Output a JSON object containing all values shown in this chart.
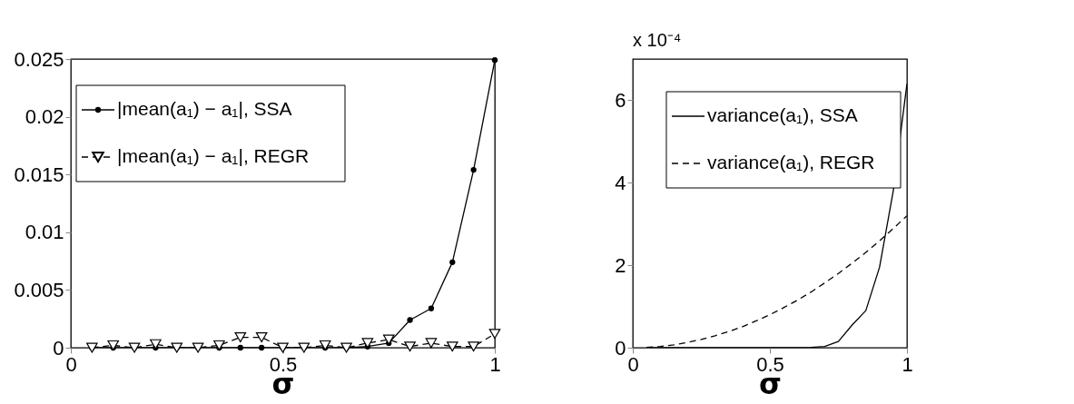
{
  "chart_data": [
    {
      "type": "line",
      "xlabel": "σ",
      "xlim": [
        0,
        1
      ],
      "xticks": [
        0,
        0.5,
        1
      ],
      "ylim": [
        0,
        0.025
      ],
      "yticks": [
        0,
        0.005,
        0.01,
        0.015,
        0.02,
        0.025
      ],
      "grid": false,
      "legend": "top left",
      "x": [
        0.05,
        0.1,
        0.15,
        0.2,
        0.25,
        0.3,
        0.35,
        0.4,
        0.45,
        0.5,
        0.55,
        0.6,
        0.65,
        0.7,
        0.75,
        0.8,
        0.85,
        0.9,
        0.95,
        1.0
      ],
      "series": [
        {
          "name": "|mean(a₁) − a₁|, SSA",
          "color": "#000000",
          "marker": "circle",
          "line_style": "solid",
          "values": [
            0,
            0,
            0,
            0,
            0,
            0,
            0,
            0,
            0,
            0,
            0,
            0,
            0,
            0.0001,
            0.0004,
            0.0024,
            0.0034,
            0.0074,
            0.0154,
            0.0249
          ]
        },
        {
          "name": "|mean(a₁) − a₁|, REGR",
          "color": "#000000",
          "marker": "triangle",
          "line_style": "dashed",
          "values": [
            0,
            0.0002,
            0,
            0.0003,
            0,
            0,
            0.0002,
            0.0009,
            0.0009,
            0,
            0,
            0.0002,
            0,
            0.0004,
            0.0007,
            0.0001,
            0.0004,
            0.0001,
            0.0001,
            0.0012
          ]
        }
      ]
    },
    {
      "type": "line",
      "xlabel": "σ",
      "xlim": [
        0,
        1
      ],
      "xticks": [
        0,
        0.5,
        1
      ],
      "ylim": [
        0,
        7
      ],
      "yticks": [
        0,
        2,
        4,
        6
      ],
      "grid": false,
      "legend": "top left",
      "annotations": [
        "x 10⁻⁴"
      ],
      "x": [
        0.05,
        0.1,
        0.15,
        0.2,
        0.25,
        0.3,
        0.35,
        0.4,
        0.45,
        0.5,
        0.55,
        0.6,
        0.65,
        0.7,
        0.75,
        0.8,
        0.85,
        0.9,
        0.95,
        1.0
      ],
      "series": [
        {
          "name": "variance(a₁), SSA",
          "color": "#000000",
          "marker": "none",
          "line_style": "solid",
          "values": [
            0,
            0,
            0,
            0,
            0,
            0,
            0,
            0,
            0,
            0,
            0,
            0,
            0.01,
            0.03,
            0.15,
            0.55,
            0.9,
            1.95,
            3.8,
            6.4
          ]
        },
        {
          "name": "variance(a₁), REGR",
          "color": "#000000",
          "marker": "none",
          "line_style": "dashed",
          "values": [
            0.01,
            0.03,
            0.07,
            0.13,
            0.2,
            0.29,
            0.39,
            0.51,
            0.65,
            0.8,
            0.97,
            1.15,
            1.35,
            1.57,
            1.8,
            2.05,
            2.31,
            2.59,
            2.89,
            3.2
          ]
        }
      ]
    }
  ]
}
